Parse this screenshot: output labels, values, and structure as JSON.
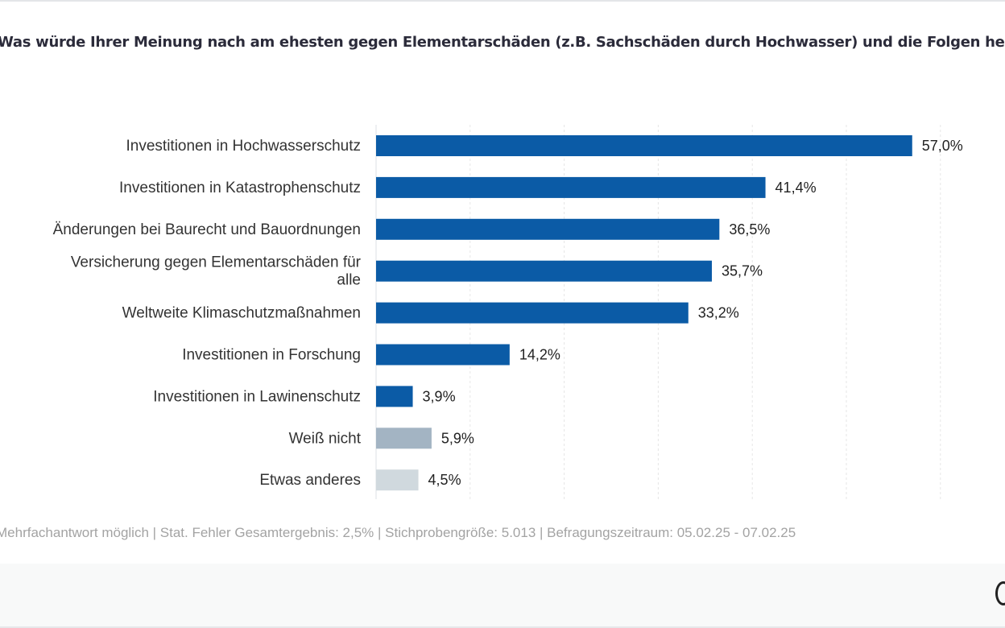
{
  "chart_data": {
    "type": "bar",
    "orientation": "horizontal",
    "title": "Was würde Ihrer Meinung nach am ehesten gegen Elementarschäden (z.B. Sachschäden durch Hochwasser) und die Folgen helfen?",
    "categories": [
      "Investitionen in Hochwasserschutz",
      "Investitionen in Katastrophenschutz",
      "Änderungen bei Baurecht und Bauordnungen",
      "Versicherung gegen Elementarschäden für alle",
      "Weltweite Klimaschutzmaßnahmen",
      "Investitionen in Forschung",
      "Investitionen in Lawinenschutz",
      "Weiß nicht",
      "Etwas anderes"
    ],
    "values": [
      57.0,
      41.4,
      36.5,
      35.7,
      33.2,
      14.2,
      3.9,
      5.9,
      4.5
    ],
    "data_labels": [
      "57,0%",
      "41,4%",
      "36,5%",
      "35,7%",
      "33,2%",
      "14,2%",
      "3,9%",
      "5,9%",
      "4,5%"
    ],
    "colors": [
      "#0b5ba6",
      "#0b5ba6",
      "#0b5ba6",
      "#0b5ba6",
      "#0b5ba6",
      "#0b5ba6",
      "#0b5ba6",
      "#a3b4c3",
      "#d0d9de"
    ],
    "xlim": [
      0,
      60
    ],
    "unit": "%",
    "grid": true,
    "xlabel": "",
    "ylabel": ""
  },
  "footer": "Mehrfachantwort möglich | Stat. Fehler Gesamtergebnis: 2,5% | Stichprobengröße: 5.013 | Befragungszeitraum: 05.02.25 - 07.02.25"
}
